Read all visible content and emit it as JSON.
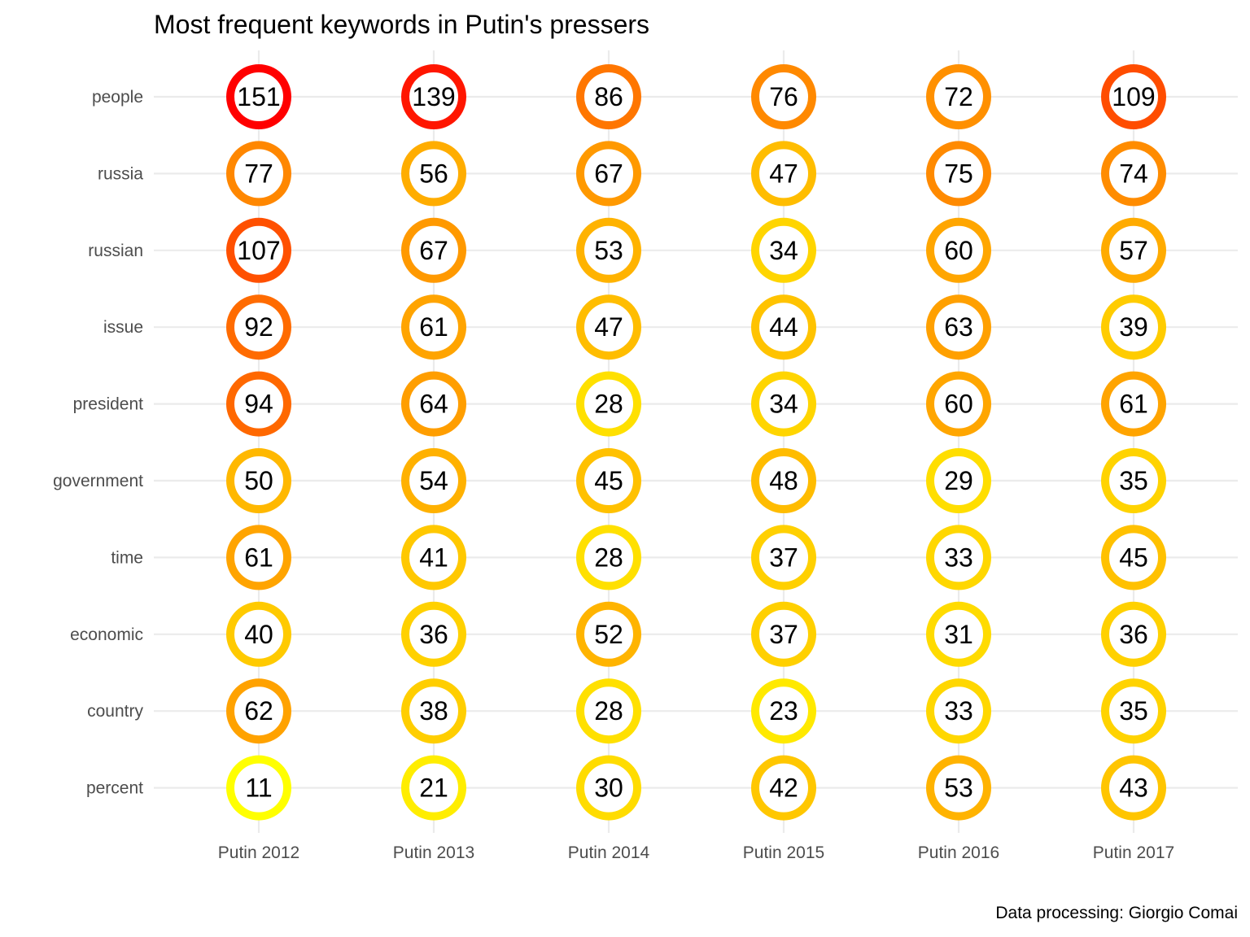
{
  "chart_data": {
    "type": "heatmap",
    "title": "Most frequent keywords in Putin's pressers",
    "caption": "Data processing:  Giorgio Comai",
    "xlabel": "",
    "ylabel": "",
    "grid": true,
    "legend": "none",
    "x": [
      "Putin 2012",
      "Putin 2013",
      "Putin 2014",
      "Putin 2015",
      "Putin 2016",
      "Putin 2017"
    ],
    "y": [
      "people",
      "russia",
      "russian",
      "issue",
      "president",
      "government",
      "time",
      "economic",
      "country",
      "percent"
    ],
    "color_scale": {
      "low": "#ffff00",
      "high": "#ff0000",
      "min": 11,
      "max": 151
    },
    "values": [
      [
        151,
        139,
        86,
        76,
        72,
        109
      ],
      [
        77,
        56,
        67,
        47,
        75,
        74
      ],
      [
        107,
        67,
        53,
        34,
        60,
        57
      ],
      [
        92,
        61,
        47,
        44,
        63,
        39
      ],
      [
        94,
        64,
        28,
        34,
        60,
        61
      ],
      [
        50,
        54,
        45,
        48,
        29,
        35
      ],
      [
        61,
        41,
        28,
        37,
        33,
        45
      ],
      [
        40,
        36,
        52,
        37,
        31,
        36
      ],
      [
        62,
        38,
        28,
        23,
        33,
        35
      ],
      [
        11,
        21,
        30,
        42,
        53,
        43
      ]
    ]
  }
}
